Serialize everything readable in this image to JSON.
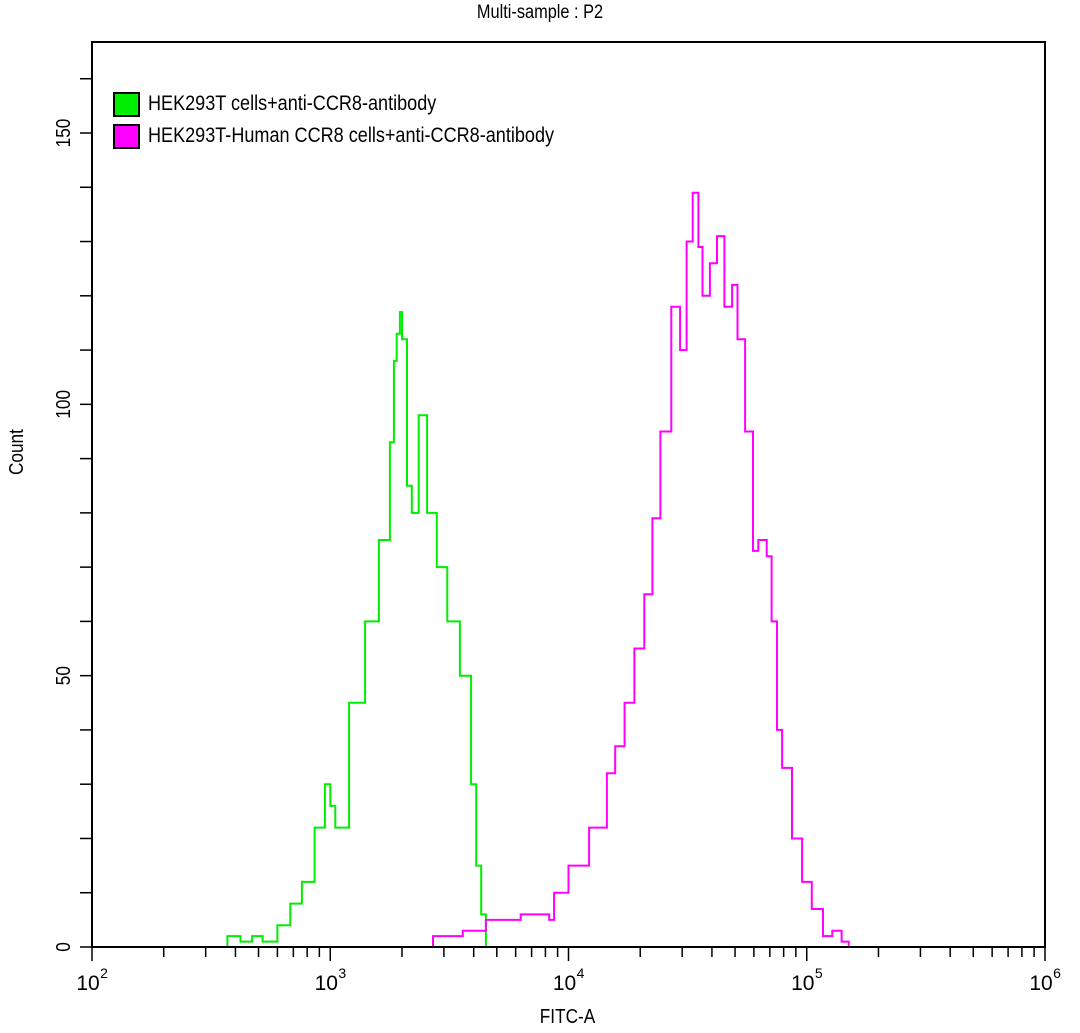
{
  "chart_data": {
    "type": "line",
    "title": "Multi-sample : P2",
    "xlabel": "FITC-A",
    "ylabel": "Count",
    "x_scale": "log",
    "xlim": [
      100,
      1000000
    ],
    "ylim": [
      0,
      167
    ],
    "x_tick_labels": [
      "10^2",
      "10^3",
      "10^4",
      "10^5",
      "10^6"
    ],
    "y_tick_labels": [
      "0",
      "50",
      "100",
      "150"
    ],
    "y_minor_tick_step": 10,
    "grid": false,
    "legend_position": "upper-left",
    "series": [
      {
        "name": "HEK293T cells+anti-CCR8-antibody",
        "color": "#00ee00",
        "x": [
          330,
          370,
          420,
          470,
          520,
          600,
          680,
          760,
          860,
          950,
          1000,
          1050,
          1200,
          1400,
          1600,
          1780,
          1850,
          1900,
          1960,
          2000,
          2100,
          2200,
          2350,
          2550,
          2800,
          3100,
          3500,
          3900,
          4100,
          4300,
          4500
        ],
        "values": [
          0,
          2,
          1,
          2,
          1,
          4,
          8,
          12,
          22,
          30,
          26,
          22,
          45,
          60,
          75,
          93,
          108,
          113,
          117,
          112,
          85,
          80,
          98,
          80,
          70,
          60,
          50,
          30,
          15,
          6,
          0
        ]
      },
      {
        "name": "HEK293T-Human CCR8 cells+anti-CCR8-antibody",
        "color": "#ff00ff",
        "x": [
          1700,
          2700,
          3600,
          4500,
          6300,
          8300,
          8700,
          10000,
          12200,
          14500,
          15700,
          17200,
          18900,
          20800,
          22500,
          24300,
          27000,
          29400,
          31300,
          33200,
          35100,
          36500,
          39200,
          42000,
          45100,
          48600,
          51200,
          55100,
          59500,
          62600,
          67900,
          71200,
          75000,
          78800,
          86700,
          95600,
          105000,
          117000,
          128000,
          140000,
          150000
        ],
        "values": [
          0,
          2,
          3,
          5,
          6,
          5,
          10,
          15,
          22,
          32,
          37,
          45,
          55,
          65,
          79,
          95,
          118,
          110,
          130,
          139,
          129,
          120,
          126,
          131,
          118,
          122,
          112,
          95,
          73,
          75,
          72,
          60,
          40,
          33,
          20,
          12,
          7,
          2,
          3,
          1,
          0
        ]
      }
    ]
  },
  "legend": {
    "items": [
      {
        "label": "HEK293T cells+anti-CCR8-antibody",
        "color": "#00ee00"
      },
      {
        "label": "HEK293T-Human CCR8 cells+anti-CCR8-antibody",
        "color": "#ff00ff"
      }
    ]
  }
}
